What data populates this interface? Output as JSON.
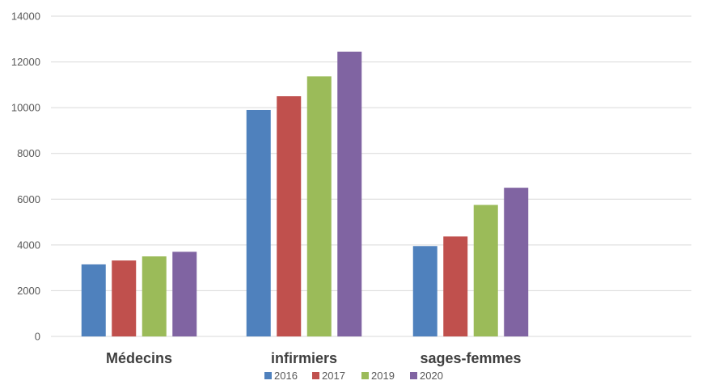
{
  "chart_data": {
    "type": "bar",
    "title": "",
    "xlabel": "",
    "ylabel": "",
    "categories": [
      "Médecins",
      "infirmiers",
      "sages-femmes"
    ],
    "ylim": [
      0,
      14000
    ],
    "yticks": [
      0,
      2000,
      4000,
      6000,
      8000,
      10000,
      12000,
      14000
    ],
    "grid": true,
    "legend_position": "bottom",
    "series": [
      {
        "name": "2016",
        "color": "#4f81bd",
        "values": [
          3150,
          9900,
          3950
        ]
      },
      {
        "name": "2017",
        "color": "#c0504d",
        "values": [
          3320,
          10500,
          4370
        ]
      },
      {
        "name": "2019",
        "color": "#9bbb59",
        "values": [
          3500,
          11370,
          5750
        ]
      },
      {
        "name": "2020",
        "color": "#8064a2",
        "values": [
          3700,
          12450,
          6500
        ]
      }
    ]
  }
}
